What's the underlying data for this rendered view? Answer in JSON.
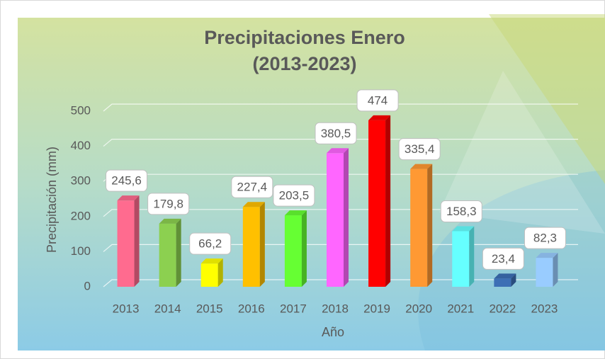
{
  "chart_data": {
    "type": "bar3d",
    "title": "Precipitaciones Enero",
    "subtitle": "(2013-2023)",
    "xlabel": "Año",
    "ylabel": "Precipitación (mm)",
    "categories": [
      "2013",
      "2014",
      "2015",
      "2016",
      "2017",
      "2018",
      "2019",
      "2020",
      "2021",
      "2022",
      "2023"
    ],
    "values": [
      245.6,
      179.8,
      66.2,
      227.4,
      203.5,
      380.5,
      474,
      335.4,
      158.3,
      23.4,
      82.3
    ],
    "value_labels": [
      "245,6",
      "179,8",
      "66,2",
      "227,4",
      "203,5",
      "380,5",
      "474",
      "335,4",
      "158,3",
      "23,4",
      "82,3"
    ],
    "colors": [
      "#ff6b8f",
      "#8cd050",
      "#ffff00",
      "#ffc000",
      "#66ff33",
      "#ff66ff",
      "#ff0000",
      "#ff9933",
      "#66ffff",
      "#3d6fb5",
      "#99ccff"
    ],
    "ylim": [
      0,
      500
    ],
    "yticks": [
      0,
      100,
      200,
      300,
      400,
      500
    ],
    "grid": true
  }
}
